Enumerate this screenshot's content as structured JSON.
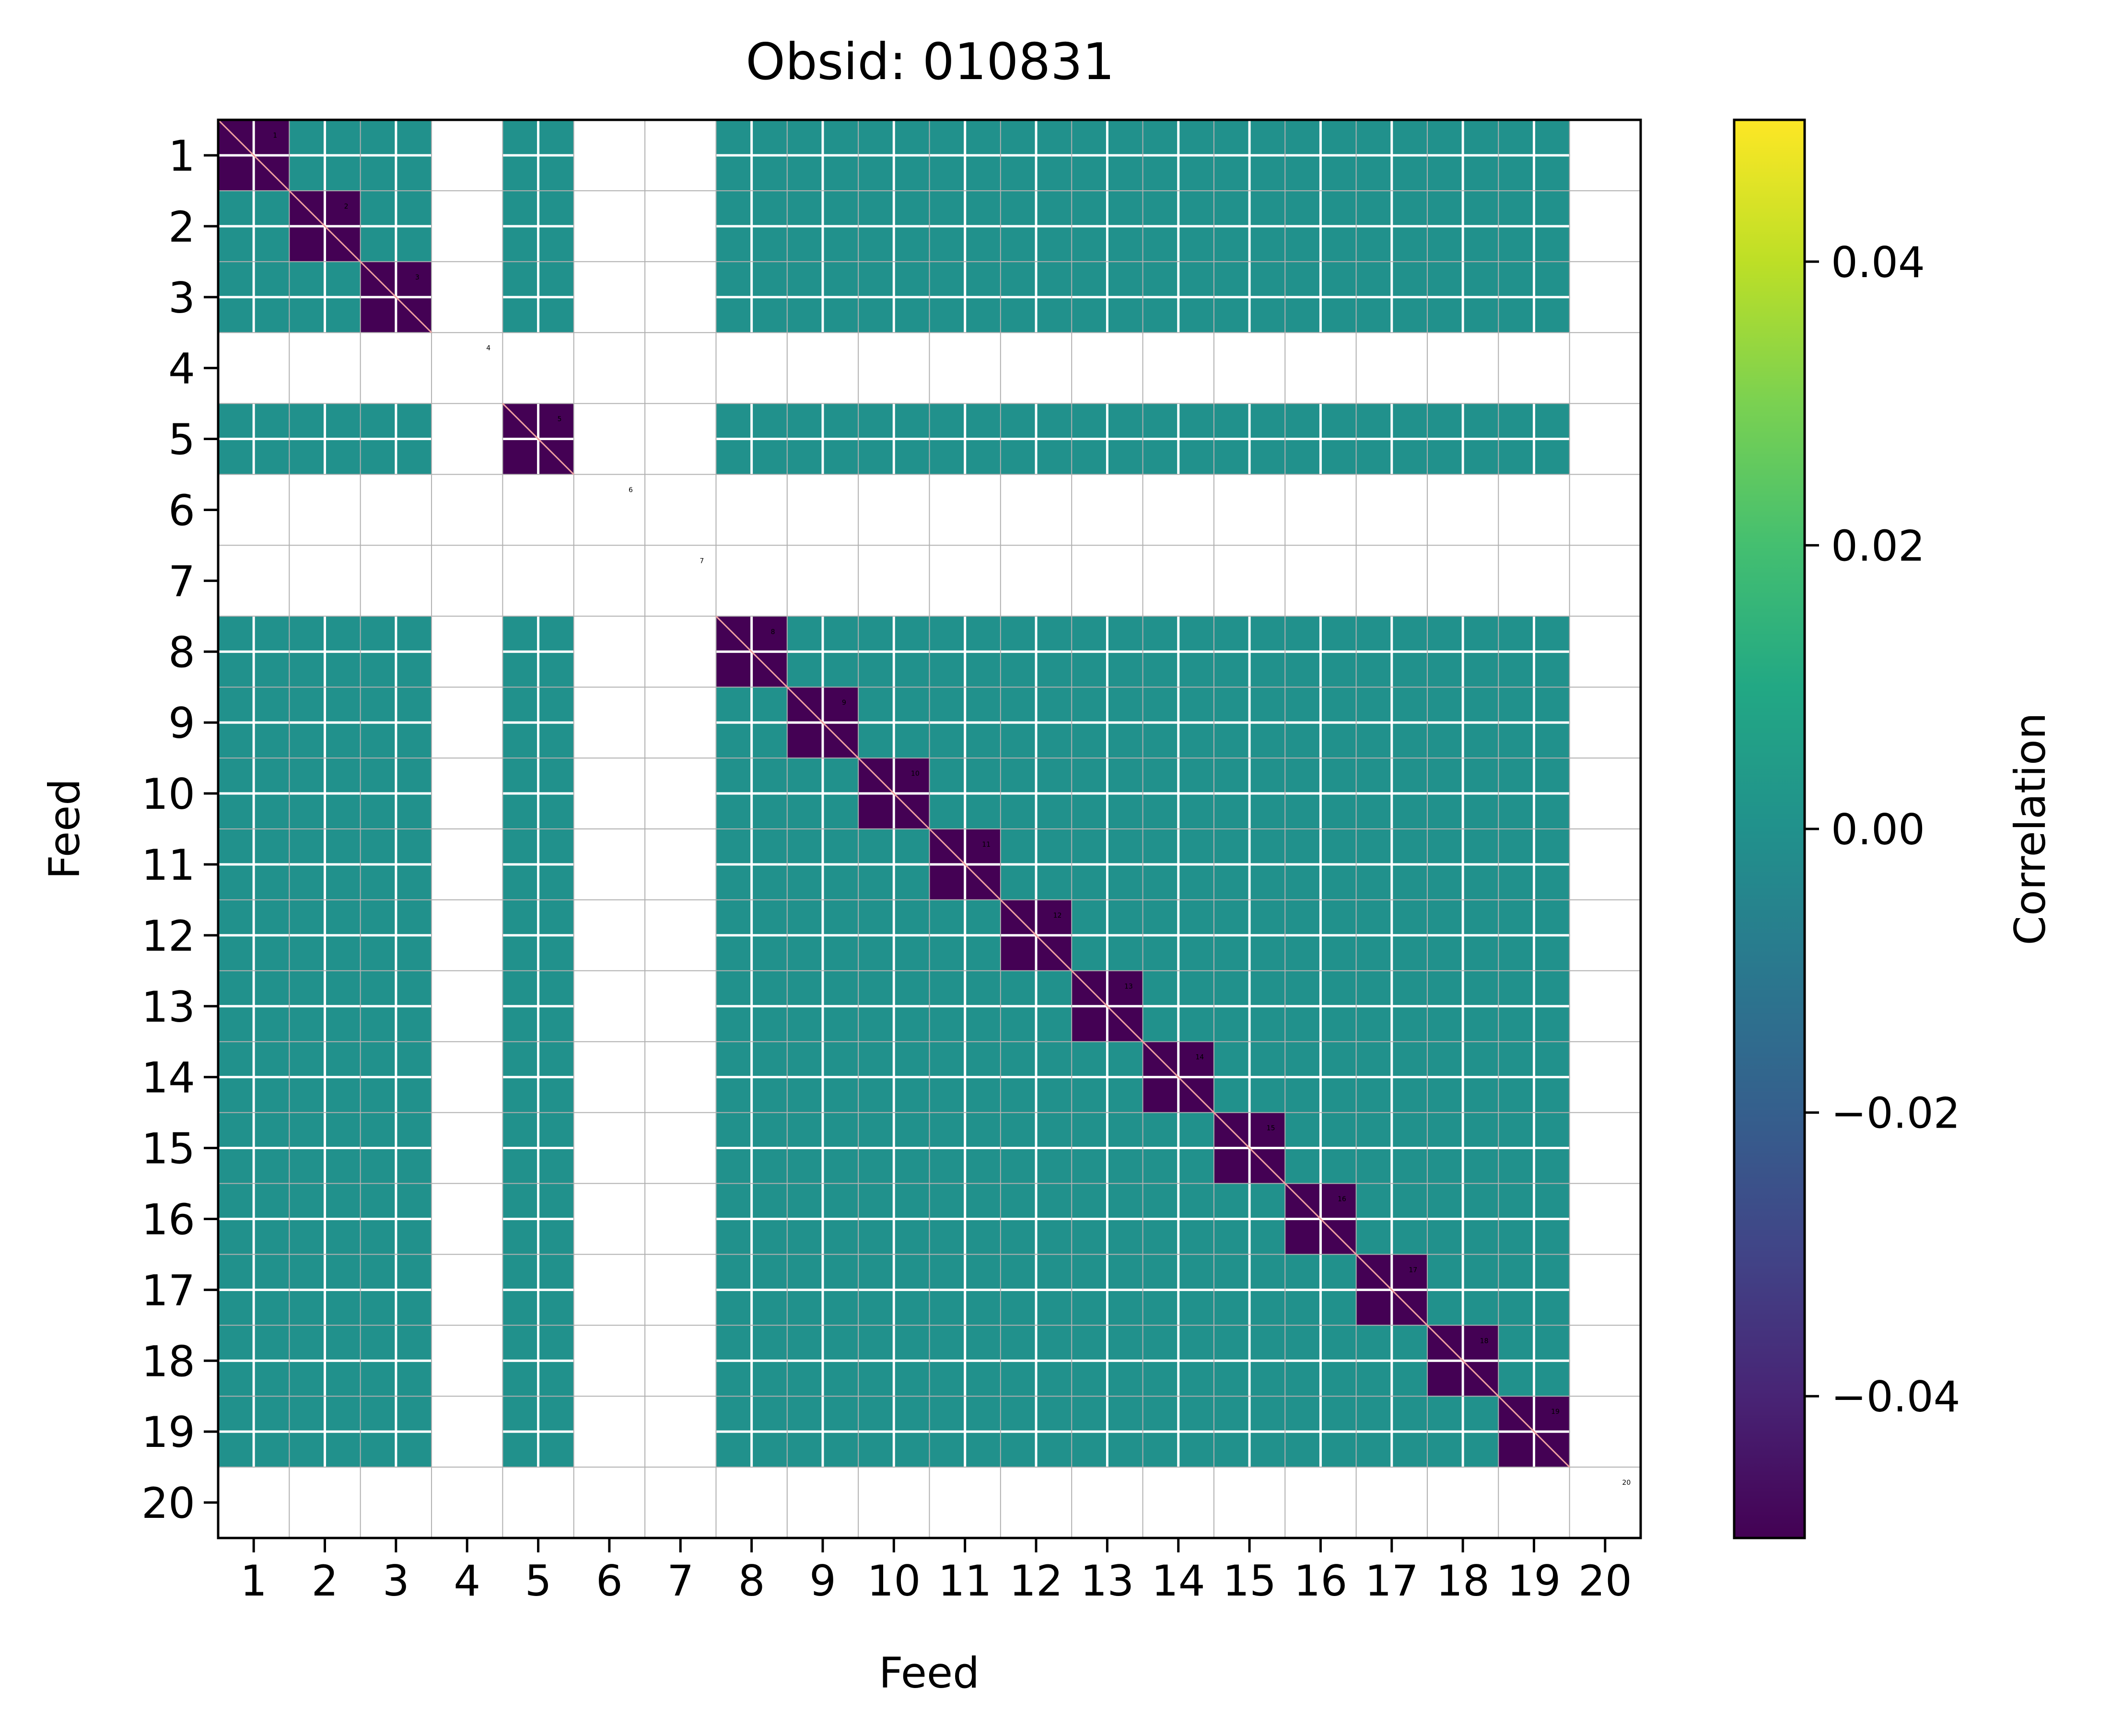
{
  "chart_data": {
    "type": "heatmap",
    "title": "Obsid: 010831",
    "xlabel": "Feed",
    "ylabel": "Feed",
    "feeds": [
      "1",
      "2",
      "3",
      "4",
      "5",
      "6",
      "7",
      "8",
      "9",
      "10",
      "11",
      "12",
      "13",
      "14",
      "15",
      "16",
      "17",
      "18",
      "19",
      "20"
    ],
    "valid_feeds": [
      1,
      2,
      3,
      5,
      8,
      9,
      10,
      11,
      12,
      13,
      14,
      15,
      16,
      17,
      18,
      19
    ],
    "blank_feeds": [
      4,
      6,
      7,
      20
    ],
    "off_diagonal_value": 0.0,
    "diagonal_value": -0.05,
    "colorbar": {
      "label": "Correlation",
      "vmin": -0.05,
      "vmax": 0.05,
      "ticks": [
        -0.04,
        -0.02,
        0.0,
        0.02,
        0.04
      ],
      "tick_labels": [
        "−0.04",
        "−0.02",
        "0.00",
        "0.02",
        "0.04"
      ],
      "colormap": "viridis"
    },
    "colors": {
      "cell": "#21918c",
      "diagonal": "#440154",
      "diagonal_line": "#f0a0a0",
      "grid_line": "#b0b0b0",
      "cell_separator": "#ffffff"
    }
  }
}
